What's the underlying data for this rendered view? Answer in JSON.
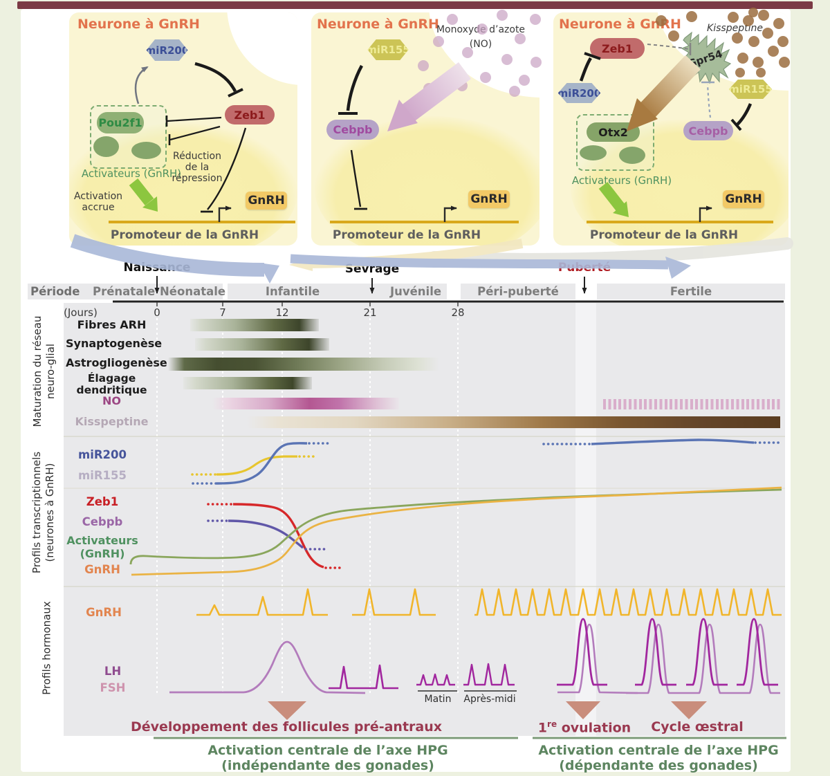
{
  "colors": {
    "top_bar": "#7b3a45",
    "panel_yellow": "#faf5d3",
    "accent_red": "#c81f25",
    "accent_green_arrow": "#8cc63f",
    "maroon_text": "#9a3950",
    "green_text": "#5d8560",
    "plot_gray": "#e9e9eb",
    "gnrh_pulse": "#f1b52b",
    "lh_purple": "#a1269e",
    "fsh_purple": "#b37cbc",
    "no_magenta": "#b45792",
    "kisspeptine_brown": "#5a3d20"
  },
  "panel1": {
    "title": "Neurone à GnRH",
    "mir200": "miR200",
    "zeb1": "Zeb1",
    "pou2f1": "Pou2f1",
    "activators": "Activateurs (GnRH)",
    "reduction_l1": "Réduction",
    "reduction_l2": "de la",
    "reduction_l3": "répression",
    "activation_l1": "Activation",
    "activation_l2": "accrue",
    "gnrh_gene": "GnRH",
    "promoter": "Promoteur de la GnRH"
  },
  "panel2": {
    "title": "Neurone à GnRH",
    "no_l1": "Monoxyde d’azote",
    "no_l2": "(NO)",
    "mir155": "miR155",
    "cebpb": "Cebpb",
    "gnrh_gene": "GnRH",
    "promoter": "Promoteur de la GnRH"
  },
  "panel3": {
    "title": "Neurone à GnRH",
    "kisspeptine": "Kisspeptine",
    "zeb1": "Zeb1",
    "mir200": "miR200",
    "gpr54": "Gpr54",
    "mir155": "miR155",
    "cebpb": "Cebpb",
    "otx2": "Otx2",
    "activators": "Activateurs (GnRH)",
    "gnrh_gene": "GnRH",
    "promoter": "Promoteur de la GnRH"
  },
  "timeline": {
    "periode": "Période",
    "jours": "(Jours)",
    "naissance": "Naissance",
    "sevrage": "Sevrage",
    "puberte": "Puberté",
    "prenatale": "Prénatale",
    "neonatale": "Néonatale",
    "infantile": "Infantile",
    "juvenile": "Juvénile",
    "peripuberte": "Péri-puberté",
    "fertile": "Fertile",
    "d0": "0",
    "d7": "7",
    "d12": "12",
    "d21": "21",
    "d28": "28"
  },
  "maturation": {
    "section_l1": "Maturation du réseau",
    "section_l2": "neuro-glial",
    "fibres": "Fibres ARH",
    "synapto": "Synaptogenèse",
    "astro": "Astrogliogenèse",
    "elagage_l1": "Élagage",
    "elagage_l2": "dendritique",
    "no": "NO",
    "kisspeptine": "Kisspeptine"
  },
  "transcription": {
    "section_l1": "Profils transcriptionnels",
    "section_l2": "(neurones à GnRH)",
    "mir200": "miR200",
    "mir155": "miR155",
    "zeb1": "Zeb1",
    "cebpb": "Cebpb",
    "activateurs_l1": "Activateurs",
    "activateurs_l2": "(GnRH)",
    "gnrh": "GnRH"
  },
  "hormones": {
    "section": "Profils hormonaux",
    "gnrh": "GnRH",
    "lh": "LH",
    "fsh": "FSH",
    "matin": "Matin",
    "apresmidi": "Après-midi"
  },
  "annotations": {
    "follicules": "Développement des follicules pré-antraux",
    "ovulation_num": "1",
    "ovulation_sup": "re",
    "ovulation_rest": " ovulation",
    "cycle": "Cycle œstral",
    "hpg_left_l1": "Activation centrale de l’axe HPG",
    "hpg_left_l2": "(indépendante des gonades)",
    "hpg_right_l1": "Activation centrale de l’axe HPG",
    "hpg_right_l2": "(dépendante des gonades)"
  }
}
